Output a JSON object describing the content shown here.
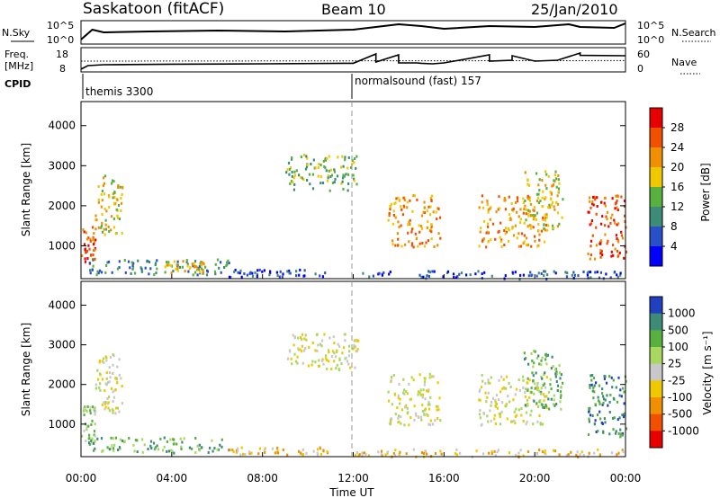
{
  "header": {
    "station": "Saskatoon (fitACF)",
    "beam": "Beam 10",
    "date": "25/Jan/2010"
  },
  "labels": {
    "nsky": "N.Sky",
    "freq_line1": "Freq.",
    "freq_line2": "[MHz]",
    "cpid": "CPID",
    "nsearch": "N.Search",
    "nave": "Nave",
    "xlabel": "Time UT"
  },
  "cpid_segments": [
    {
      "label": "themis 3300",
      "start_hour": 0.0
    },
    {
      "label": "normalsound (fast) 157",
      "start_hour": 12.0
    }
  ],
  "colors": {
    "power_scale": [
      "#0000ff",
      "#2850c8",
      "#3c8c78",
      "#58b040",
      "#f0c800",
      "#f09000",
      "#f05000",
      "#e80000"
    ],
    "velocity_scale": [
      "#2040c0",
      "#3c8c78",
      "#58b040",
      "#a8d860",
      "#c8c8c8",
      "#f0c800",
      "#f09000",
      "#f05000",
      "#e80000"
    ]
  },
  "chart_data": [
    {
      "type": "line",
      "name": "noise",
      "x_range_hours": [
        0,
        24
      ],
      "left_ticks": [
        "10^5",
        "10^0"
      ],
      "right_ticks": [
        "10^5",
        "10^0"
      ],
      "series": [
        {
          "name": "N.Sky",
          "x": [
            0.0,
            0.5,
            1.0,
            3.0,
            6.0,
            9.0,
            12.0,
            13.0,
            14.0,
            15.0,
            16.0,
            18.0,
            20.0,
            21.5,
            22.0,
            23.5,
            24.0
          ],
          "y": [
            0.1,
            1.2,
            0.9,
            1.0,
            1.1,
            1.0,
            1.2,
            1.5,
            1.8,
            1.6,
            1.3,
            1.6,
            1.5,
            1.8,
            1.5,
            1.4,
            1.9
          ]
        }
      ]
    },
    {
      "type": "line",
      "name": "frequency",
      "x_range_hours": [
        0,
        24
      ],
      "left_ticks": [
        "18",
        "8"
      ],
      "right_ticks": [
        "60",
        "0"
      ],
      "series": [
        {
          "name": "Freq.",
          "x": [
            0.0,
            0.3,
            1.0,
            4.0,
            8.0,
            12.0,
            12.0,
            13.0,
            13.0,
            14.0,
            14.0,
            14.8,
            15.0,
            15.5,
            16.0,
            18.0,
            18.0,
            19.0,
            19.0,
            20.0,
            21.0,
            22.0,
            22.0,
            24.0
          ],
          "y": [
            8.5,
            10.5,
            11.0,
            11.3,
            11.5,
            11.8,
            11.8,
            17.0,
            12.5,
            16.5,
            12.0,
            12.0,
            11.8,
            11.5,
            12.0,
            16.5,
            13.0,
            13.5,
            16.0,
            13.0,
            13.5,
            17.5,
            16.2,
            16.0
          ]
        },
        {
          "name": "Nave",
          "x": [
            0.0,
            24.0
          ],
          "y": [
            13.0,
            13.3
          ]
        }
      ]
    },
    {
      "type": "heatmap",
      "name": "power",
      "x_range_hours": [
        0,
        24
      ],
      "x_ticks": [
        "00:00",
        "04:00",
        "08:00",
        "12:00",
        "16:00",
        "20:00",
        "00:00"
      ],
      "ylabel": "Slant Range [km]",
      "y_range_km": [
        180,
        4600
      ],
      "y_ticks": [
        1000,
        2000,
        3000,
        4000
      ],
      "colorbar_label": "Power [dB]",
      "colorbar_ticks": [
        "28",
        "24",
        "20",
        "16",
        "12",
        "8",
        "4"
      ],
      "colorbar_range": [
        0,
        32
      ],
      "regions": [
        {
          "t0": 0.0,
          "t1": 0.6,
          "r0": 500,
          "r1": 1500,
          "level": 6
        },
        {
          "t0": 0.6,
          "t1": 1.8,
          "r0": 1300,
          "r1": 2800,
          "level": 4
        },
        {
          "t0": 0.3,
          "t1": 6.5,
          "r0": 300,
          "r1": 700,
          "level": 2
        },
        {
          "t0": 3.5,
          "t1": 5.5,
          "r0": 350,
          "r1": 650,
          "level": 4
        },
        {
          "t0": 6.5,
          "t1": 11.0,
          "r0": 250,
          "r1": 450,
          "level": 1
        },
        {
          "t0": 9.0,
          "t1": 12.2,
          "r0": 2400,
          "r1": 3300,
          "level": 3
        },
        {
          "t0": 13.5,
          "t1": 15.8,
          "r0": 1000,
          "r1": 2300,
          "level": 5
        },
        {
          "t0": 17.5,
          "t1": 20.5,
          "r0": 1000,
          "r1": 2300,
          "level": 5
        },
        {
          "t0": 19.5,
          "t1": 21.2,
          "r0": 1400,
          "r1": 2900,
          "level": 4
        },
        {
          "t0": 22.3,
          "t1": 24.0,
          "r0": 700,
          "r1": 2300,
          "level": 6
        },
        {
          "t0": 12.0,
          "t1": 24.0,
          "r0": 200,
          "r1": 400,
          "level": 1
        }
      ]
    },
    {
      "type": "heatmap",
      "name": "velocity",
      "x_range_hours": [
        0,
        24
      ],
      "x_ticks": [
        "00:00",
        "04:00",
        "08:00",
        "12:00",
        "16:00",
        "20:00",
        "00:00"
      ],
      "ylabel": "Slant Range [km]",
      "y_range_km": [
        180,
        4600
      ],
      "y_ticks": [
        1000,
        2000,
        3000,
        4000
      ],
      "colorbar_label": "Velocity [m s⁻¹]",
      "colorbar_ticks": [
        "1000",
        "500",
        "100",
        "25",
        "-25",
        "-100",
        "-500",
        "-1000"
      ],
      "regions": [
        {
          "t0": 0.0,
          "t1": 0.6,
          "r0": 500,
          "r1": 1500,
          "level": 3
        },
        {
          "t0": 0.6,
          "t1": 1.8,
          "r0": 1300,
          "r1": 2800,
          "level": 4
        },
        {
          "t0": 0.3,
          "t1": 6.5,
          "r0": 300,
          "r1": 700,
          "level": 2
        },
        {
          "t0": 6.5,
          "t1": 11.0,
          "r0": 250,
          "r1": 450,
          "level": 5
        },
        {
          "t0": 9.0,
          "t1": 12.2,
          "r0": 2400,
          "r1": 3300,
          "level": 4
        },
        {
          "t0": 13.5,
          "t1": 15.8,
          "r0": 1000,
          "r1": 2300,
          "level": 4
        },
        {
          "t0": 17.5,
          "t1": 20.5,
          "r0": 1000,
          "r1": 2300,
          "level": 4
        },
        {
          "t0": 19.5,
          "t1": 21.2,
          "r0": 1400,
          "r1": 2900,
          "level": 2
        },
        {
          "t0": 22.3,
          "t1": 24.0,
          "r0": 700,
          "r1": 2300,
          "level": 1
        },
        {
          "t0": 12.0,
          "t1": 24.0,
          "r0": 200,
          "r1": 400,
          "level": 5
        }
      ]
    }
  ]
}
